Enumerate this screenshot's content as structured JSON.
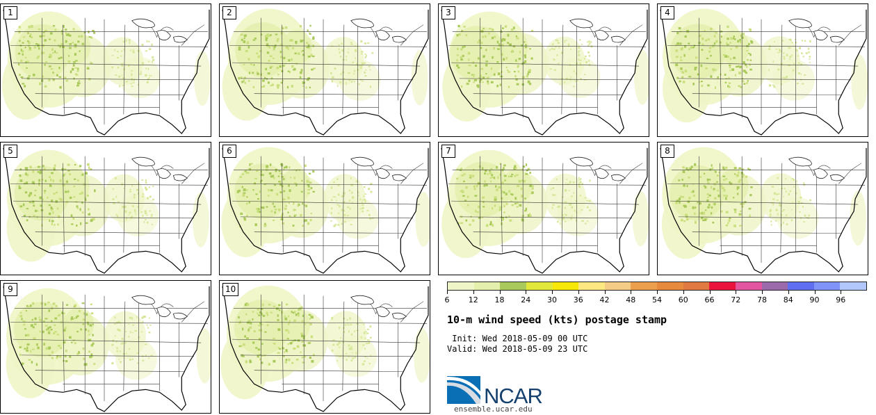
{
  "stamps": [
    {
      "label": "1"
    },
    {
      "label": "2"
    },
    {
      "label": "3"
    },
    {
      "label": "4"
    },
    {
      "label": "5"
    },
    {
      "label": "6"
    },
    {
      "label": "7"
    },
    {
      "label": "8"
    },
    {
      "label": "9"
    },
    {
      "label": "10"
    }
  ],
  "legend": {
    "ticks": [
      "6",
      "12",
      "18",
      "24",
      "30",
      "36",
      "42",
      "48",
      "54",
      "60",
      "66",
      "72",
      "78",
      "84",
      "90",
      "96"
    ],
    "colors": [
      "#f0f5c8",
      "#e3efab",
      "#a9c95a",
      "#e1e83a",
      "#f8e80a",
      "#fde780",
      "#f5cc85",
      "#ec9f4c",
      "#e88a3d",
      "#e07a42",
      "#e8143e",
      "#e455a0",
      "#9b6aaa",
      "#5f6ff0",
      "#7f93f8",
      "#b2c7fb"
    ]
  },
  "title": "10-m wind speed (kts) postage stamp",
  "init": " Init: Wed 2018-05-09 00 UTC",
  "valid": "Valid: Wed 2018-05-09 23 UTC",
  "logo": {
    "text": "NCAR",
    "color": "#14406e",
    "accent": "#1b80c4"
  },
  "url": "ensemble.ucar.edu"
}
